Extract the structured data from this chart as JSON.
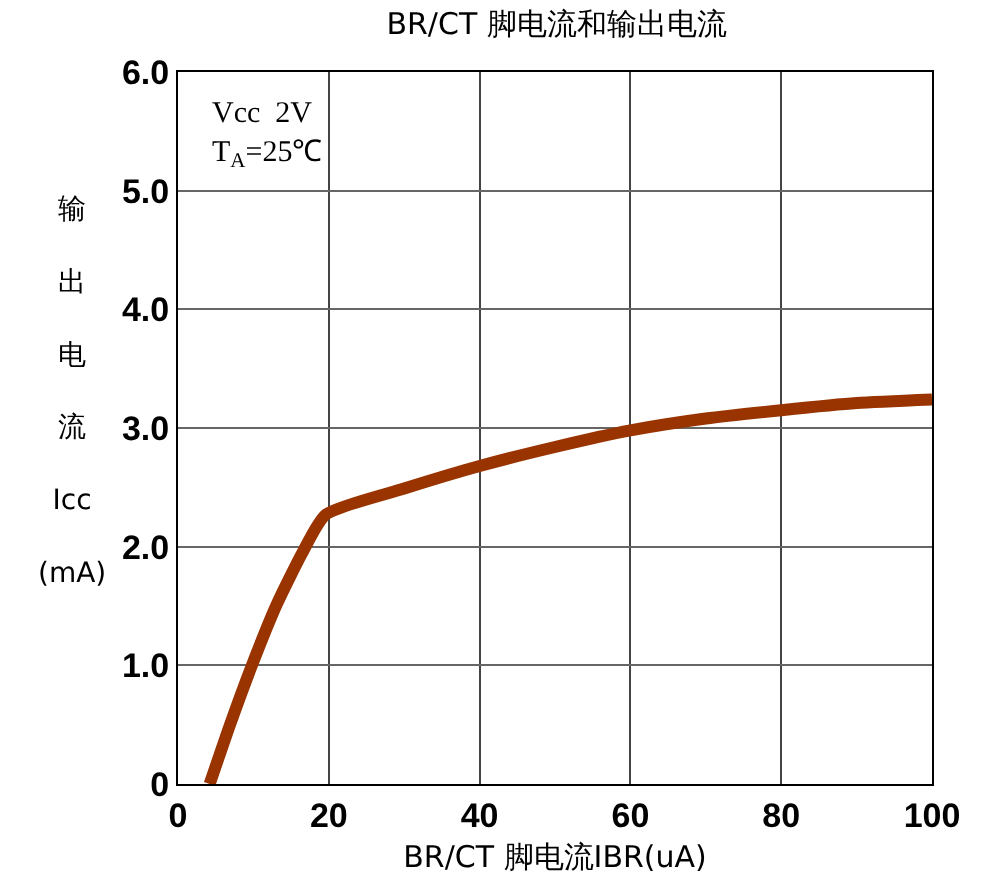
{
  "chart_data": {
    "type": "line",
    "title": "BR/CT 脚电流和输出电流",
    "xlabel": "BR/CT 脚电流IBR(uA)",
    "ylabel": "输出电流Icc(mA)",
    "annotations": [
      "Vcc  2V",
      "T$_{A}$=25℃"
    ],
    "x": [
      4.2,
      6.9,
      9.8,
      13,
      16.5,
      19.6,
      30,
      40,
      50,
      60,
      70,
      80,
      90,
      100
    ],
    "series": [
      {
        "color": "#993300",
        "values": [
          0,
          0.5,
          1.0,
          1.5,
          1.95,
          2.27,
          2.49,
          2.68,
          2.84,
          2.98,
          3.08,
          3.15,
          3.21,
          3.24
        ]
      }
    ],
    "xlim": [
      0,
      100
    ],
    "xticks": [
      0,
      20,
      40,
      60,
      80,
      100
    ],
    "ylim": [
      0,
      6
    ],
    "yticks": [
      {
        "value": 0,
        "label": "0"
      },
      {
        "value": 1,
        "label": "1.0"
      },
      {
        "value": 2,
        "label": "2.0"
      },
      {
        "value": 3,
        "label": "3.0"
      },
      {
        "value": 4,
        "label": "4.0"
      },
      {
        "value": 5,
        "label": "5.0"
      },
      {
        "value": 6,
        "label": "6.0"
      }
    ],
    "grid": true,
    "marker": "none",
    "line_style": "solid"
  }
}
